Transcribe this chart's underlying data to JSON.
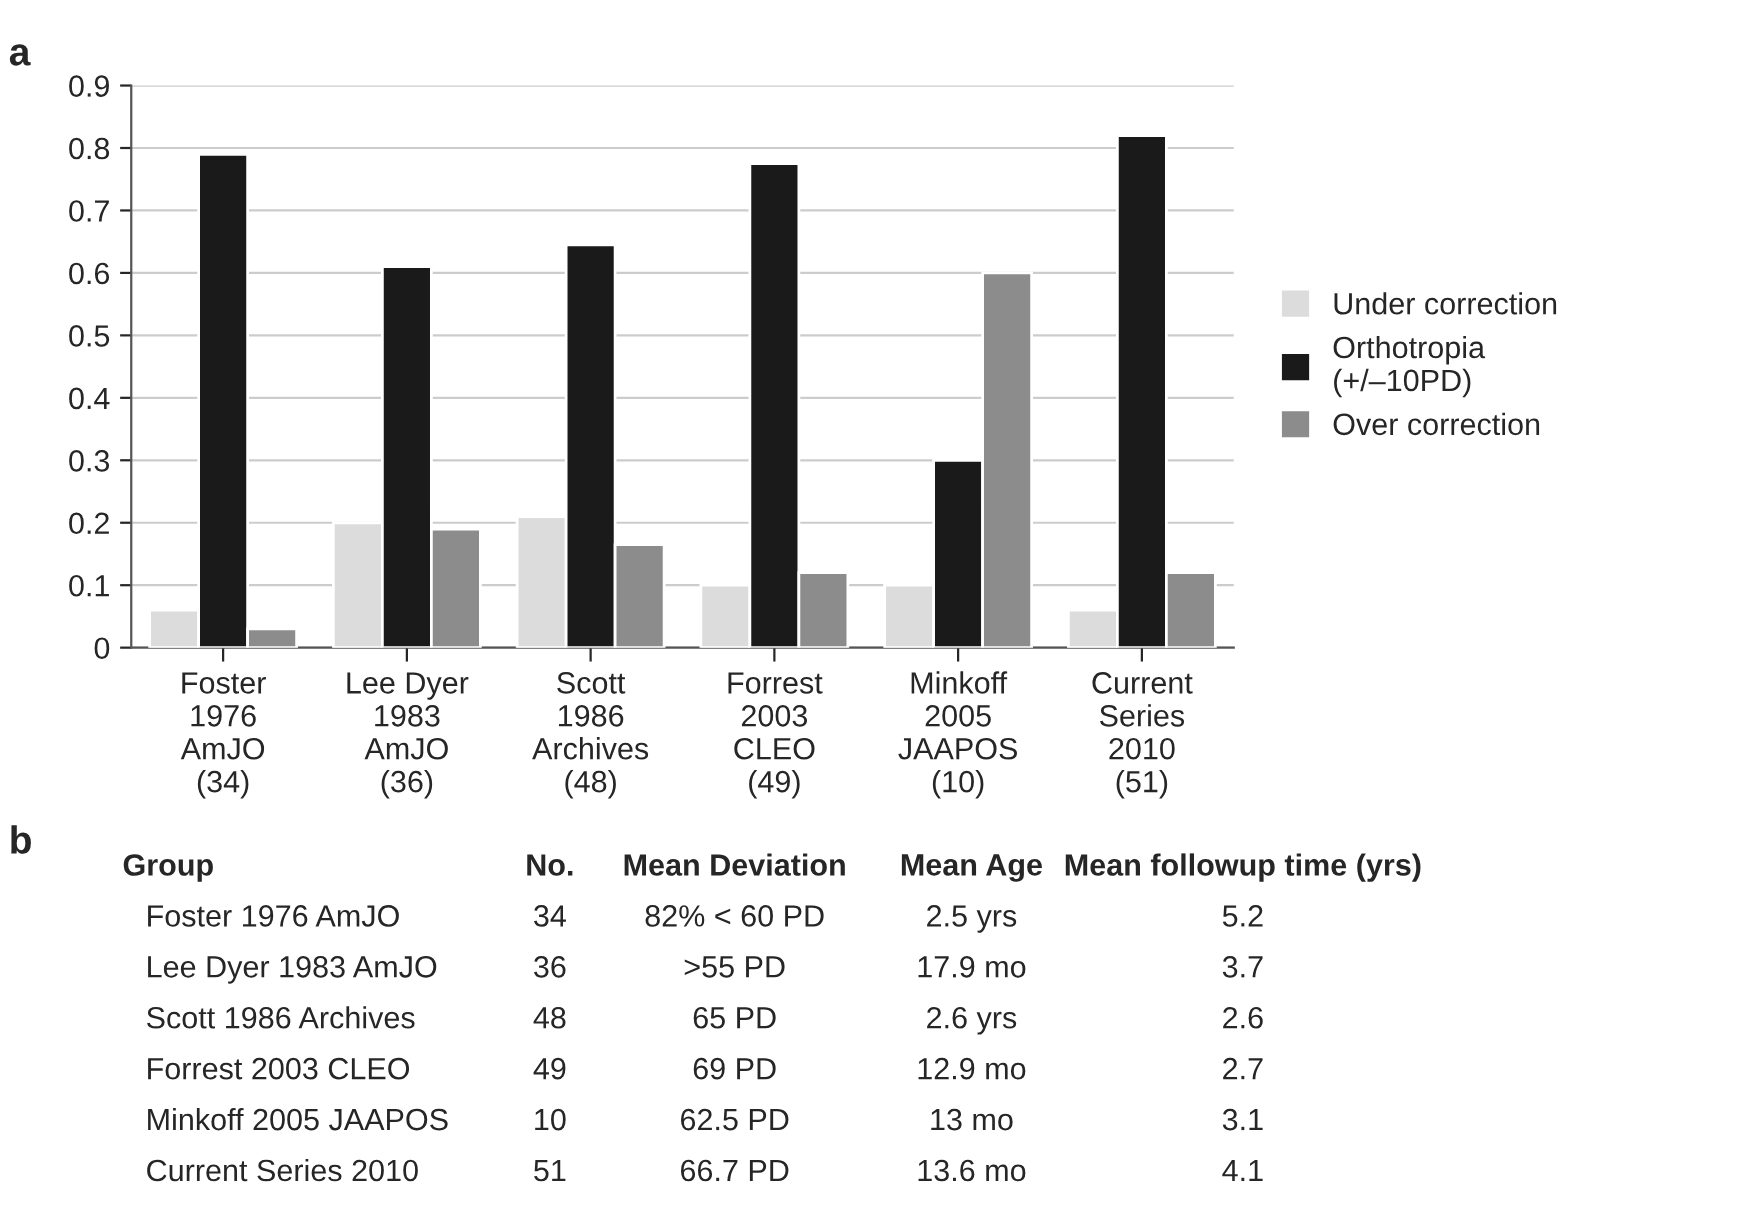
{
  "chart_data": [
    {
      "type": "bar",
      "title": "a",
      "categories": [
        "Foster\n1976\nAmJO\n(34)",
        "Lee Dyer\n1983\nAmJO\n(36)",
        "Scott\n1986\nArchives\n(48)",
        "Forrest\n2003\nCLEO\n(49)",
        "Minkoff\n2005\nJAAPOS\n(10)",
        "Current\nSeries\n2010\n(51)"
      ],
      "series": [
        {
          "name": "Under correction",
          "color": "#dcdcdc",
          "values": [
            0.06,
            0.2,
            0.21,
            0.1,
            0.1,
            0.06
          ]
        },
        {
          "name": "Orthotropia\n(+/–10PD)",
          "color": "#1a1a1a",
          "values": [
            0.79,
            0.61,
            0.645,
            0.775,
            0.3,
            0.82
          ]
        },
        {
          "name": "Over correction",
          "color": "#8c8c8c",
          "values": [
            0.03,
            0.19,
            0.165,
            0.12,
            0.6,
            0.12
          ]
        }
      ],
      "ylim": [
        0,
        0.9
      ],
      "yticks": [
        0,
        0.1,
        0.2,
        0.3,
        0.4,
        0.5,
        0.6,
        0.7,
        0.8,
        0.9
      ],
      "grid": "y",
      "legend": "right"
    },
    {
      "type": "other",
      "title": "b",
      "annotations": [
        "Group",
        "No.",
        "Mean Deviation",
        "Mean Age",
        "Mean followup time (yrs)",
        "Foster 1976 AmJO",
        "34",
        "82% < 60 PD",
        "2.5 yrs",
        "5.2",
        "Lee Dyer 1983 AmJO",
        "36",
        ">55 PD",
        "17.9 mo",
        "3.7",
        "Scott 1986 Archives",
        "48",
        "65 PD",
        "2.6 yrs",
        "2.6",
        "Forrest 2003 CLEO",
        "49",
        "69 PD",
        "12.9 mo",
        "2.7",
        "Minkoff 2005 JAAPOS",
        "10",
        "62.5 PD",
        "13 mo",
        "3.1",
        "Current Series 2010",
        "51",
        "66.7 PD",
        "13.6 mo",
        "4.1"
      ]
    }
  ]
}
